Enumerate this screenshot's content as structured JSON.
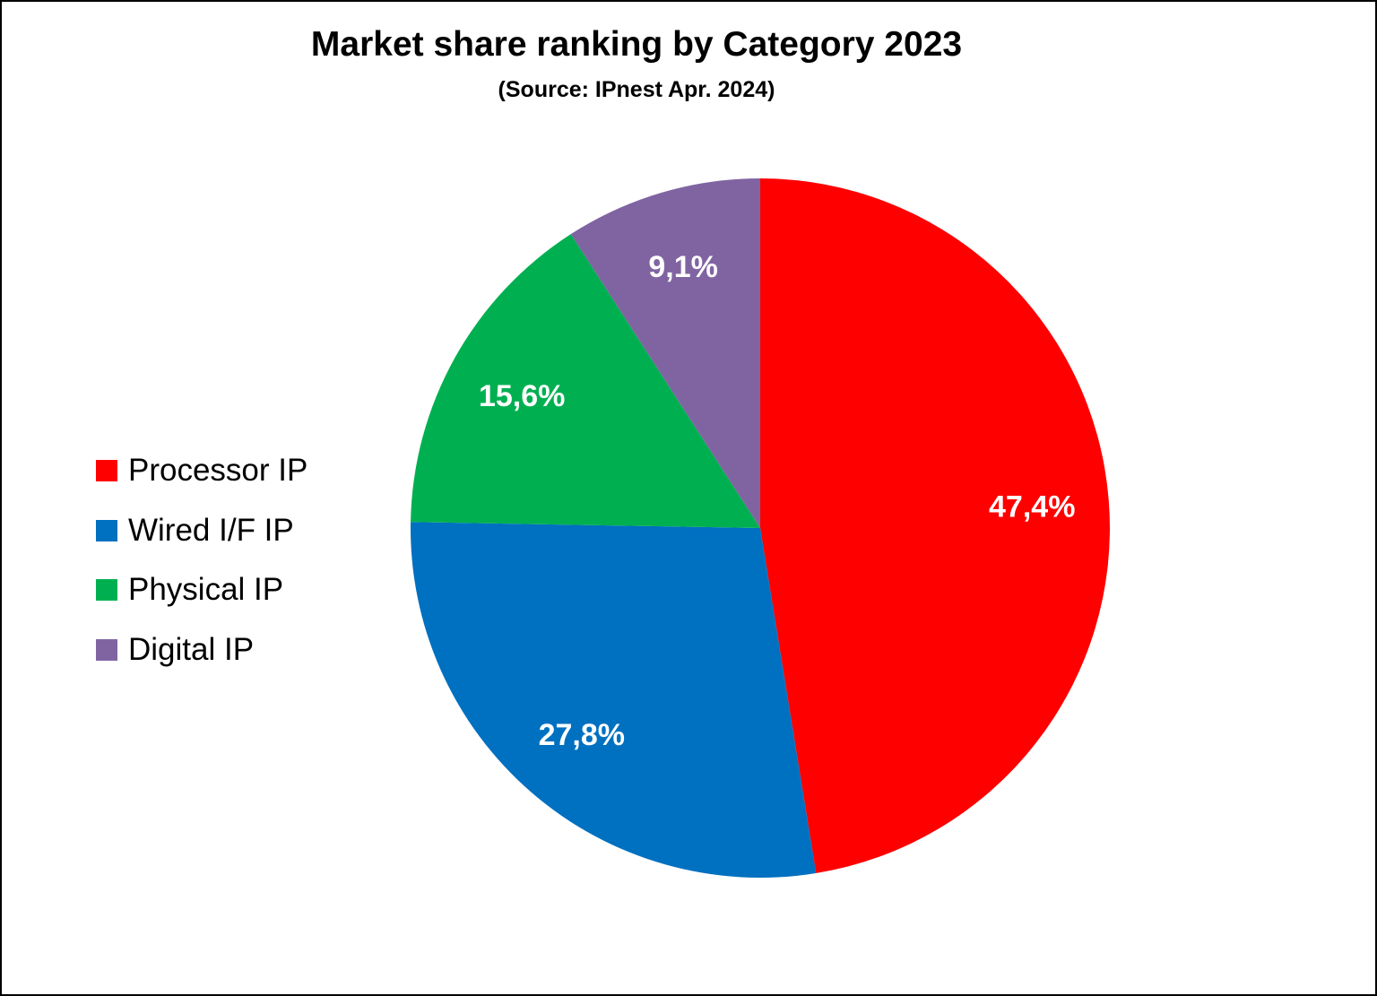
{
  "chart_data": {
    "type": "pie",
    "title": "Market share ranking by Category 2023",
    "subtitle": "(Source: IPnest Apr. 2024)",
    "categories": [
      "Processor IP",
      "Wired I/F IP",
      "Physical IP",
      "Digital IP"
    ],
    "values": [
      47.4,
      27.8,
      15.6,
      9.1
    ],
    "data_labels": [
      "47,4%",
      "27,8%",
      "15,6%",
      "9,1%"
    ],
    "colors": [
      "#FF0000",
      "#0070C0",
      "#00B050",
      "#8064A2"
    ],
    "start_angle": "top, clockwise",
    "legend_position": "left"
  }
}
